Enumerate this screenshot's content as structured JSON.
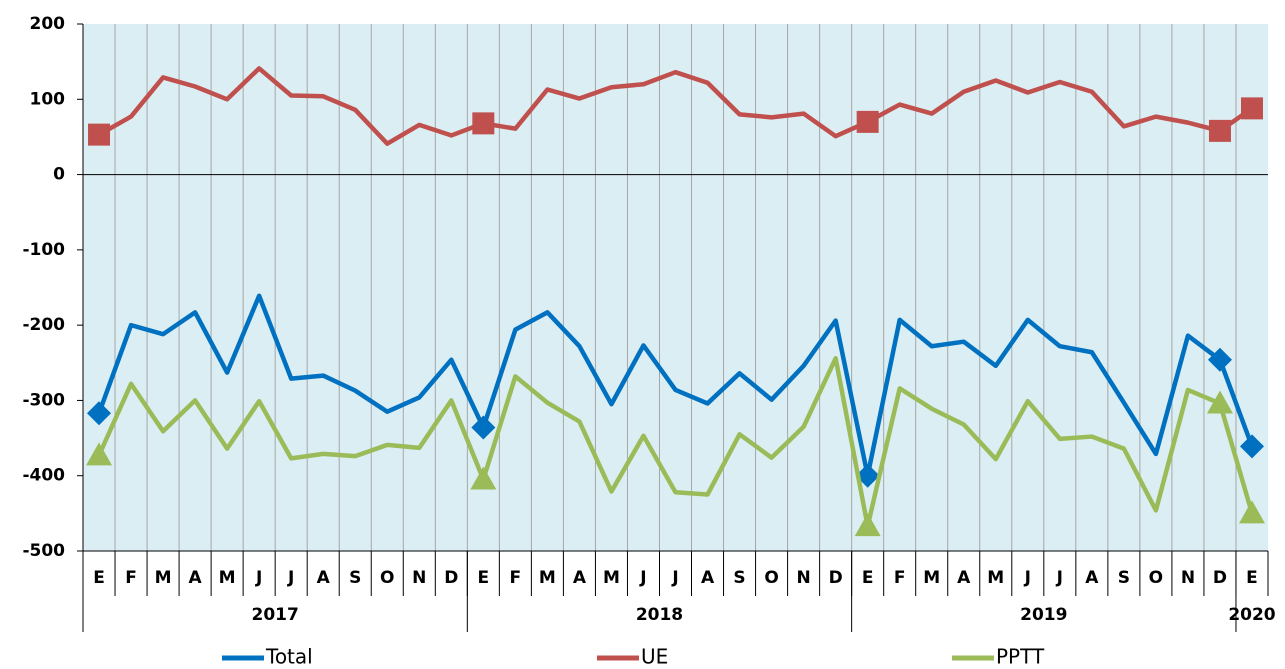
{
  "chart_data": {
    "type": "line",
    "categories": [
      "E",
      "F",
      "M",
      "A",
      "M",
      "J",
      "J",
      "A",
      "S",
      "O",
      "N",
      "D",
      "E",
      "F",
      "M",
      "A",
      "M",
      "J",
      "J",
      "A",
      "S",
      "O",
      "N",
      "D",
      "E",
      "F",
      "M",
      "A",
      "M",
      "J",
      "J",
      "A",
      "S",
      "O",
      "N",
      "D",
      "E"
    ],
    "years": [
      "2017",
      "2018",
      "2019",
      "2020"
    ],
    "year_start_index": [
      0,
      12,
      24,
      36
    ],
    "marker_index": [
      0,
      12,
      24,
      35,
      36
    ],
    "ylim": [
      -500,
      200
    ],
    "yticks": [
      -500,
      -400,
      -300,
      -200,
      -100,
      0,
      100,
      200
    ],
    "background": "#dbeef4",
    "series": [
      {
        "name": "Total",
        "color": "#0070c0",
        "marker": "diamond",
        "values": [
          -317,
          -200,
          -212,
          -183,
          -263,
          -161,
          -271,
          -267,
          -287,
          -315,
          -296,
          -246,
          -336,
          -206,
          -183,
          -228,
          -305,
          -227,
          -286,
          -304,
          -264,
          -299,
          -254,
          -194,
          -400,
          -193,
          -228,
          -222,
          -254,
          -193,
          -228,
          -236,
          -303,
          -371,
          -214,
          -246,
          -361
        ]
      },
      {
        "name": "UE",
        "color": "#c0504d",
        "marker": "square",
        "values": [
          53,
          77,
          129,
          117,
          100,
          141,
          105,
          104,
          86,
          41,
          66,
          52,
          68,
          61,
          113,
          101,
          116,
          120,
          136,
          122,
          80,
          76,
          81,
          51,
          70,
          93,
          81,
          110,
          125,
          109,
          123,
          110,
          64,
          77,
          69,
          58,
          88
        ]
      },
      {
        "name": "PPTT",
        "color": "#9bbb59",
        "marker": "triangle",
        "values": [
          -373,
          -278,
          -341,
          -300,
          -364,
          -301,
          -377,
          -371,
          -374,
          -359,
          -363,
          -300,
          -405,
          -268,
          -303,
          -328,
          -421,
          -347,
          -422,
          -425,
          -345,
          -376,
          -335,
          -244,
          -467,
          -284,
          -311,
          -332,
          -378,
          -301,
          -351,
          -348,
          -364,
          -446,
          -286,
          -304,
          -450
        ]
      }
    ]
  }
}
